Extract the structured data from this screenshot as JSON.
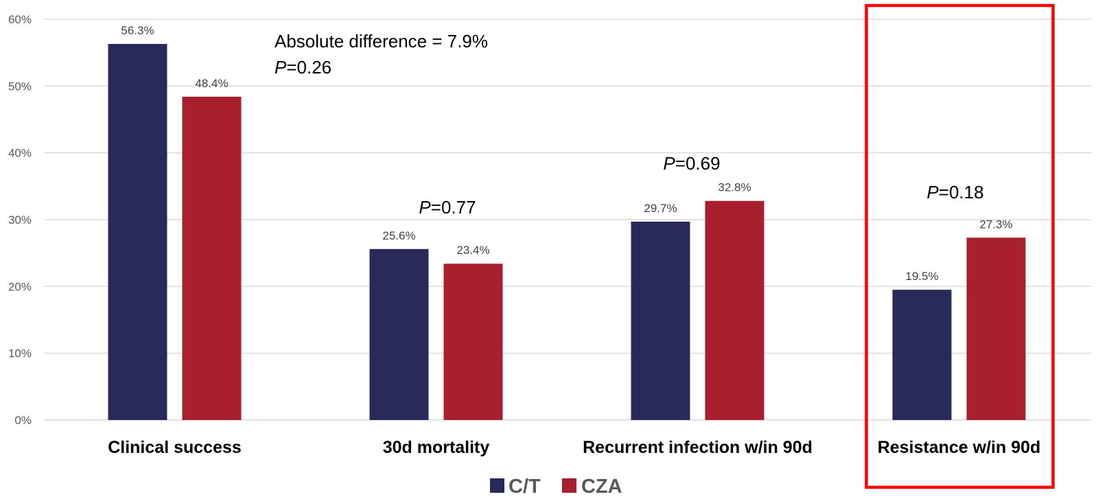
{
  "chart_data": {
    "type": "bar",
    "title": "",
    "xlabel": "",
    "ylabel": "",
    "ylim": [
      0,
      60
    ],
    "y_ticks": [
      "0%",
      "10%",
      "20%",
      "30%",
      "40%",
      "50%",
      "60%"
    ],
    "y_tick_values": [
      0,
      10,
      20,
      30,
      40,
      50,
      60
    ],
    "grid": true,
    "legend_position": "bottom-center",
    "categories": [
      "Clinical success",
      "30d mortality",
      "Recurrent infection w/in 90d",
      "Resistance w/in 90d"
    ],
    "series": [
      {
        "name": "C/T",
        "color": "#2a2a5a",
        "values": [
          56.3,
          25.6,
          29.7,
          19.5
        ],
        "labels": [
          "56.3%",
          "25.6%",
          "29.7%",
          "19.5%"
        ]
      },
      {
        "name": "CZA",
        "color": "#a81f2d",
        "values": [
          48.4,
          23.4,
          32.8,
          27.3
        ],
        "labels": [
          "48.4%",
          "23.4%",
          "32.8%",
          "27.3%"
        ]
      }
    ],
    "annotations": [
      {
        "category_index": 0,
        "lines": [
          {
            "prefix": "",
            "text": "Absolute difference = 7.9%"
          },
          {
            "prefix": "P",
            "text": "=0.26"
          }
        ]
      },
      {
        "category_index": 1,
        "lines": [
          {
            "prefix": "P",
            "text": "=0.77"
          }
        ]
      },
      {
        "category_index": 2,
        "lines": [
          {
            "prefix": "P",
            "text": "=0.69"
          }
        ]
      },
      {
        "category_index": 3,
        "lines": [
          {
            "prefix": "P",
            "text": "=0.18"
          }
        ]
      }
    ],
    "highlight": {
      "category_index": 3,
      "color": "#ff0000",
      "shape": "rectangle-outline"
    }
  }
}
